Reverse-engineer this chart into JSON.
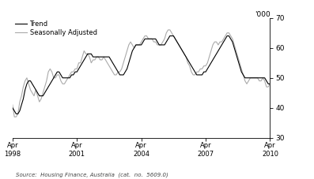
{
  "ylabel_right": "'000",
  "source_text": "Source:  Housing Finance, Australia  (cat.  no.  5609.0)",
  "ylim": [
    30,
    70
  ],
  "yticks": [
    30,
    40,
    50,
    60,
    70
  ],
  "legend_labels": [
    "Trend",
    "Seasonally Adjusted"
  ],
  "trend_color": "#000000",
  "sa_color": "#aaaaaa",
  "trend_linewidth": 0.8,
  "sa_linewidth": 0.8,
  "background_color": "#ffffff",
  "xtick_labels": [
    "Apr\n1998",
    "Apr\n2001",
    "Apr\n2004",
    "Apr\n2007",
    "Apr\n2010"
  ],
  "xtick_positions": [
    0,
    36,
    72,
    108,
    144
  ],
  "trend_y": [
    40,
    39,
    38,
    38,
    39,
    41,
    43,
    46,
    48,
    49,
    49,
    48,
    47,
    46,
    45,
    44,
    44,
    44,
    45,
    46,
    47,
    48,
    49,
    50,
    51,
    52,
    52,
    51,
    50,
    50,
    50,
    50,
    50,
    51,
    51,
    52,
    52,
    53,
    54,
    55,
    56,
    57,
    58,
    58,
    58,
    57,
    57,
    57,
    57,
    57,
    57,
    57,
    57,
    57,
    57,
    56,
    55,
    54,
    53,
    52,
    51,
    51,
    51,
    52,
    53,
    55,
    57,
    59,
    60,
    61,
    61,
    61,
    61,
    62,
    63,
    63,
    63,
    63,
    63,
    63,
    63,
    62,
    61,
    61,
    61,
    61,
    62,
    63,
    64,
    64,
    64,
    63,
    62,
    61,
    60,
    59,
    58,
    57,
    56,
    55,
    54,
    53,
    52,
    51,
    51,
    51,
    51,
    52,
    52,
    53,
    54,
    55,
    56,
    57,
    58,
    59,
    60,
    61,
    62,
    63,
    64,
    64,
    63,
    62,
    60,
    58,
    56,
    54,
    52,
    51,
    50,
    50,
    50,
    50,
    50,
    50,
    50,
    50,
    50,
    50,
    50,
    50,
    49,
    48,
    48
  ],
  "sa_y": [
    41,
    37,
    37,
    38,
    42,
    44,
    47,
    49,
    50,
    48,
    46,
    45,
    44,
    46,
    44,
    42,
    43,
    45,
    47,
    49,
    52,
    53,
    52,
    50,
    50,
    51,
    51,
    49,
    48,
    48,
    49,
    50,
    51,
    52,
    52,
    53,
    53,
    55,
    55,
    57,
    59,
    58,
    58,
    57,
    55,
    56,
    56,
    57,
    57,
    56,
    56,
    57,
    56,
    55,
    54,
    53,
    52,
    51,
    51,
    52,
    52,
    53,
    55,
    57,
    59,
    61,
    62,
    61,
    60,
    61,
    61,
    61,
    62,
    63,
    64,
    64,
    63,
    63,
    63,
    62,
    62,
    61,
    61,
    61,
    62,
    63,
    65,
    66,
    66,
    65,
    64,
    63,
    62,
    61,
    60,
    59,
    58,
    57,
    55,
    54,
    52,
    51,
    51,
    52,
    52,
    53,
    53,
    54,
    54,
    55,
    57,
    59,
    61,
    62,
    62,
    61,
    62,
    62,
    63,
    64,
    65,
    65,
    64,
    63,
    61,
    59,
    57,
    55,
    53,
    51,
    49,
    48,
    49,
    50,
    50,
    50,
    50,
    50,
    49,
    49,
    50,
    49,
    47,
    47,
    48
  ]
}
